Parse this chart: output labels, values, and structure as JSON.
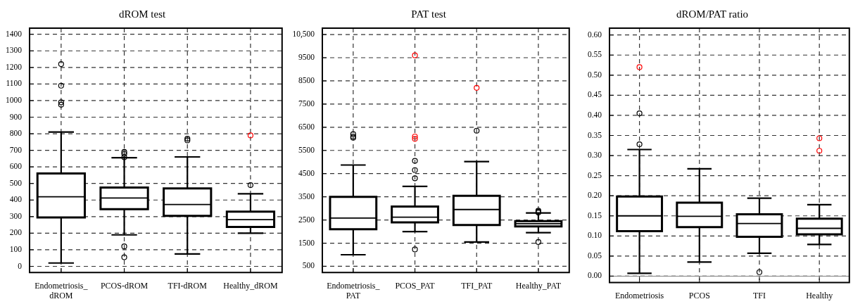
{
  "chart_data": [
    {
      "type": "box",
      "title": "dROM test",
      "categories": [
        "Endometriosis_ dROM",
        "PCOS-dROM",
        "TFI-dROM",
        "Healthy_dROM"
      ],
      "boxes": [
        {
          "low": 20,
          "q1": 295,
          "median": 420,
          "q3": 560,
          "high": 810,
          "outliers": [
            1220,
            1090,
            990,
            975
          ]
        },
        {
          "low": 190,
          "q1": 345,
          "median": 412,
          "q3": 475,
          "high": 655,
          "outliers": [
            690,
            678,
            658,
            120,
            55
          ]
        },
        {
          "low": 75,
          "q1": 305,
          "median": 373,
          "q3": 470,
          "high": 660,
          "outliers": [
            770,
            760
          ]
        },
        {
          "low": 200,
          "q1": 238,
          "median": 282,
          "q3": 330,
          "high": 438,
          "outliers": [
            490
          ]
        }
      ],
      "series": [
        {
          "type": "scatter",
          "color": "#ff0000",
          "x": [
            "Healthy_dROM"
          ],
          "values": [
            790
          ]
        }
      ],
      "ylim": [
        -37,
        1437
      ],
      "yticks": [
        0,
        100,
        200,
        300,
        400,
        500,
        600,
        700,
        800,
        900,
        1000,
        1100,
        1200,
        1300,
        1400
      ],
      "grid": true,
      "marker": "circle"
    },
    {
      "type": "box",
      "title": "PAT test",
      "categories": [
        "Endometriosis_ PAT",
        "PCOS_PAT",
        "TFI_PAT",
        "Healthy_PAT"
      ],
      "boxes": [
        {
          "low": 1000,
          "q1": 2100,
          "median": 2580,
          "q3": 3500,
          "high": 4870,
          "outliers": [
            6200,
            6100,
            6050
          ]
        },
        {
          "low": 2000,
          "q1": 2400,
          "median": 2620,
          "q3": 3080,
          "high": 3950,
          "outliers": [
            5050,
            4650,
            4300,
            1230
          ]
        },
        {
          "low": 1550,
          "q1": 2280,
          "median": 2950,
          "q3": 3540,
          "high": 5020,
          "outliers": [
            6350
          ]
        },
        {
          "low": 1950,
          "q1": 2220,
          "median": 2340,
          "q3": 2450,
          "high": 2800,
          "outliers": [
            2900,
            2860,
            2820,
            1550
          ]
        }
      ],
      "series": [
        {
          "type": "scatter",
          "color": "#ff0000",
          "x": [
            "PCOS_PAT",
            "PCOS_PAT",
            "PCOS_PAT",
            "TFI_PAT"
          ],
          "values": [
            9600,
            6100,
            6000,
            8200
          ]
        }
      ],
      "ylim": [
        235,
        10775
      ],
      "yticks": [
        500,
        1500,
        2500,
        3500,
        4500,
        5500,
        6500,
        7500,
        8500,
        9500,
        {
          "value": 10500,
          "label": "10,500"
        }
      ],
      "grid": true,
      "marker": "circle"
    },
    {
      "type": "box",
      "title": "dROM/PAT ratio",
      "categories": [
        "Endometriosis",
        "PCOS",
        "TFI",
        "Healthy"
      ],
      "boxes": [
        {
          "low": 0.007,
          "q1": 0.112,
          "median": 0.15,
          "q3": 0.198,
          "high": 0.315,
          "outliers": [
            0.405,
            0.328
          ]
        },
        {
          "low": 0.035,
          "q1": 0.122,
          "median": 0.149,
          "q3": 0.183,
          "high": 0.267
        },
        {
          "low": 0.057,
          "q1": 0.098,
          "median": 0.131,
          "q3": 0.154,
          "high": 0.194,
          "outliers": [
            0.01
          ]
        },
        {
          "low": 0.079,
          "q1": 0.104,
          "median": 0.119,
          "q3": 0.143,
          "high": 0.178
        }
      ],
      "series": [
        {
          "type": "scatter",
          "color": "#ff0000",
          "x": [
            "Endometriosis",
            "Healthy",
            "Healthy"
          ],
          "values": [
            0.52,
            0.343,
            0.312
          ]
        }
      ],
      "ylim": [
        -0.016,
        0.617
      ],
      "yticks": [
        {
          "value": 0,
          "label": "0.00"
        },
        0.05,
        {
          "value": 0.1,
          "label": "0.10"
        },
        0.15,
        {
          "value": 0.2,
          "label": "0.20"
        },
        0.25,
        {
          "value": 0.3,
          "label": "0.30"
        },
        0.35,
        {
          "value": 0.4,
          "label": "0.40"
        },
        0.45,
        {
          "value": 0.5,
          "label": "0.50"
        },
        0.55,
        {
          "value": 0.6,
          "label": "0.60"
        }
      ],
      "ref_lines": [
        {
          "axis": "y",
          "value": 0,
          "color": "#808080"
        }
      ],
      "grid": true,
      "marker": "circle"
    }
  ]
}
